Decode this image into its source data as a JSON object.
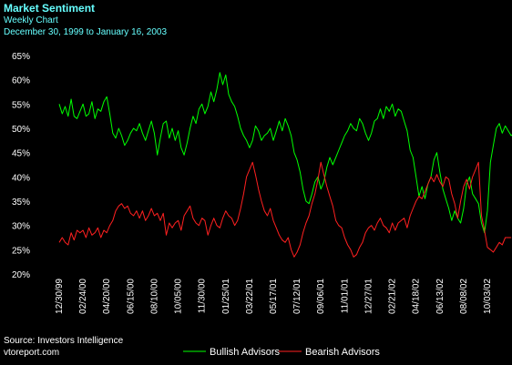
{
  "header": {
    "title": "Market Sentiment",
    "subtitle": "Weekly Chart",
    "date_range": "December 30, 1999 to January 16, 2003"
  },
  "footer": {
    "source": "Source:  Investors Intelligence",
    "site": "vtoreport.com"
  },
  "colors": {
    "background": "#000000",
    "bullish": "#00ff00",
    "bearish": "#ff2020",
    "header_text": "#66ffff",
    "axis_text": "#ffffff"
  },
  "chart_data": {
    "type": "line",
    "title": "Market Sentiment",
    "ylim": [
      20,
      65
    ],
    "y_ticks": [
      "20%",
      "25%",
      "30%",
      "35%",
      "40%",
      "45%",
      "50%",
      "55%",
      "60%",
      "65%"
    ],
    "x_tick_labels": [
      "12/30/99",
      "02/24/00",
      "04/20/00",
      "06/15/00",
      "08/10/00",
      "10/05/00",
      "11/30/00",
      "01/25/01",
      "03/22/01",
      "05/17/01",
      "07/12/01",
      "09/06/01",
      "11/01/01",
      "12/27/01",
      "02/21/02",
      "04/18/02",
      "06/13/02",
      "08/08/02",
      "10/03/02"
    ],
    "x_tick_week_index": [
      0,
      8,
      16,
      24,
      32,
      40,
      48,
      56,
      64,
      72,
      80,
      88,
      96,
      104,
      112,
      120,
      128,
      136,
      144
    ],
    "grid": false,
    "legend": "bottom",
    "series": [
      {
        "name": "Bullish Advisors",
        "values": [
          55.0,
          53.0,
          54.5,
          52.5,
          56.0,
          52.5,
          52.0,
          53.5,
          55.0,
          52.5,
          53.0,
          55.5,
          52.0,
          54.0,
          53.5,
          55.5,
          56.5,
          53.0,
          49.0,
          48.0,
          50.0,
          48.5,
          46.5,
          47.5,
          49.0,
          50.0,
          49.5,
          51.0,
          49.0,
          47.5,
          49.5,
          51.5,
          49.0,
          44.5,
          48.0,
          51.0,
          51.5,
          48.0,
          50.0,
          47.5,
          49.5,
          46.0,
          44.5,
          47.0,
          50.0,
          52.5,
          51.0,
          54.0,
          55.0,
          53.0,
          54.5,
          57.5,
          55.5,
          58.0,
          61.5,
          59.0,
          61.0,
          57.0,
          55.5,
          54.5,
          52.5,
          50.0,
          48.5,
          47.5,
          46.0,
          47.5,
          50.5,
          49.5,
          47.5,
          48.5,
          49.0,
          50.0,
          47.5,
          49.5,
          51.5,
          49.5,
          52.0,
          50.5,
          48.5,
          45.0,
          43.5,
          41.0,
          37.5,
          35.0,
          34.5,
          36.5,
          39.0,
          40.0,
          37.5,
          39.0,
          42.0,
          44.0,
          42.5,
          44.0,
          45.5,
          47.0,
          48.5,
          49.5,
          51.0,
          50.0,
          49.5,
          52.0,
          51.0,
          49.0,
          47.5,
          49.0,
          51.5,
          52.0,
          54.0,
          52.0,
          54.5,
          53.5,
          55.0,
          52.5,
          54.0,
          53.5,
          51.5,
          49.5,
          45.5,
          44.0,
          40.0,
          36.0,
          38.0,
          35.5,
          38.5,
          40.0,
          43.5,
          45.0,
          41.0,
          37.5,
          35.5,
          33.5,
          31.0,
          33.0,
          31.5,
          30.5,
          33.5,
          38.5,
          40.0,
          36.5,
          35.5,
          34.5,
          30.5,
          28.5,
          33.0,
          43.0,
          46.5,
          50.0,
          51.0,
          49.0,
          50.5,
          49.5,
          48.5,
          49.0,
          50.0
        ]
      },
      {
        "name": "Bearish Advisors",
        "values": [
          26.5,
          27.5,
          26.5,
          26.0,
          28.5,
          27.0,
          29.0,
          28.5,
          29.0,
          27.5,
          29.5,
          28.0,
          28.5,
          29.5,
          27.5,
          29.0,
          28.5,
          30.0,
          31.0,
          33.0,
          34.0,
          34.5,
          33.5,
          34.0,
          32.5,
          32.0,
          33.0,
          31.5,
          33.0,
          31.0,
          32.0,
          33.5,
          32.0,
          32.5,
          31.0,
          32.5,
          28.0,
          30.5,
          29.5,
          30.5,
          31.0,
          29.0,
          32.0,
          33.0,
          34.0,
          31.5,
          30.5,
          30.0,
          31.5,
          31.0,
          28.0,
          30.0,
          31.5,
          30.0,
          29.5,
          31.5,
          33.0,
          32.0,
          31.5,
          30.0,
          31.0,
          33.5,
          36.5,
          40.0,
          41.5,
          43.0,
          40.5,
          37.5,
          35.0,
          33.0,
          32.0,
          33.5,
          31.0,
          29.5,
          28.0,
          27.0,
          26.5,
          27.5,
          25.0,
          23.5,
          24.5,
          26.0,
          28.5,
          30.5,
          32.0,
          34.5,
          36.5,
          39.5,
          43.0,
          40.5,
          38.0,
          36.0,
          34.0,
          31.0,
          30.0,
          29.5,
          27.5,
          26.0,
          25.0,
          23.5,
          24.0,
          25.5,
          26.5,
          28.5,
          29.5,
          30.0,
          29.0,
          30.5,
          31.5,
          30.0,
          29.5,
          28.5,
          30.5,
          29.0,
          30.5,
          31.0,
          31.5,
          29.5,
          32.0,
          33.5,
          35.0,
          36.0,
          35.5,
          37.0,
          38.5,
          40.0,
          39.0,
          40.5,
          39.0,
          38.0,
          40.0,
          39.5,
          36.5,
          34.5,
          31.5,
          35.0,
          38.0,
          39.5,
          37.5,
          40.0,
          41.5,
          43.0,
          32.0,
          29.0,
          25.5,
          25.0,
          24.5,
          25.5,
          26.5,
          26.0,
          27.5,
          27.5,
          27.5
        ]
      }
    ]
  }
}
